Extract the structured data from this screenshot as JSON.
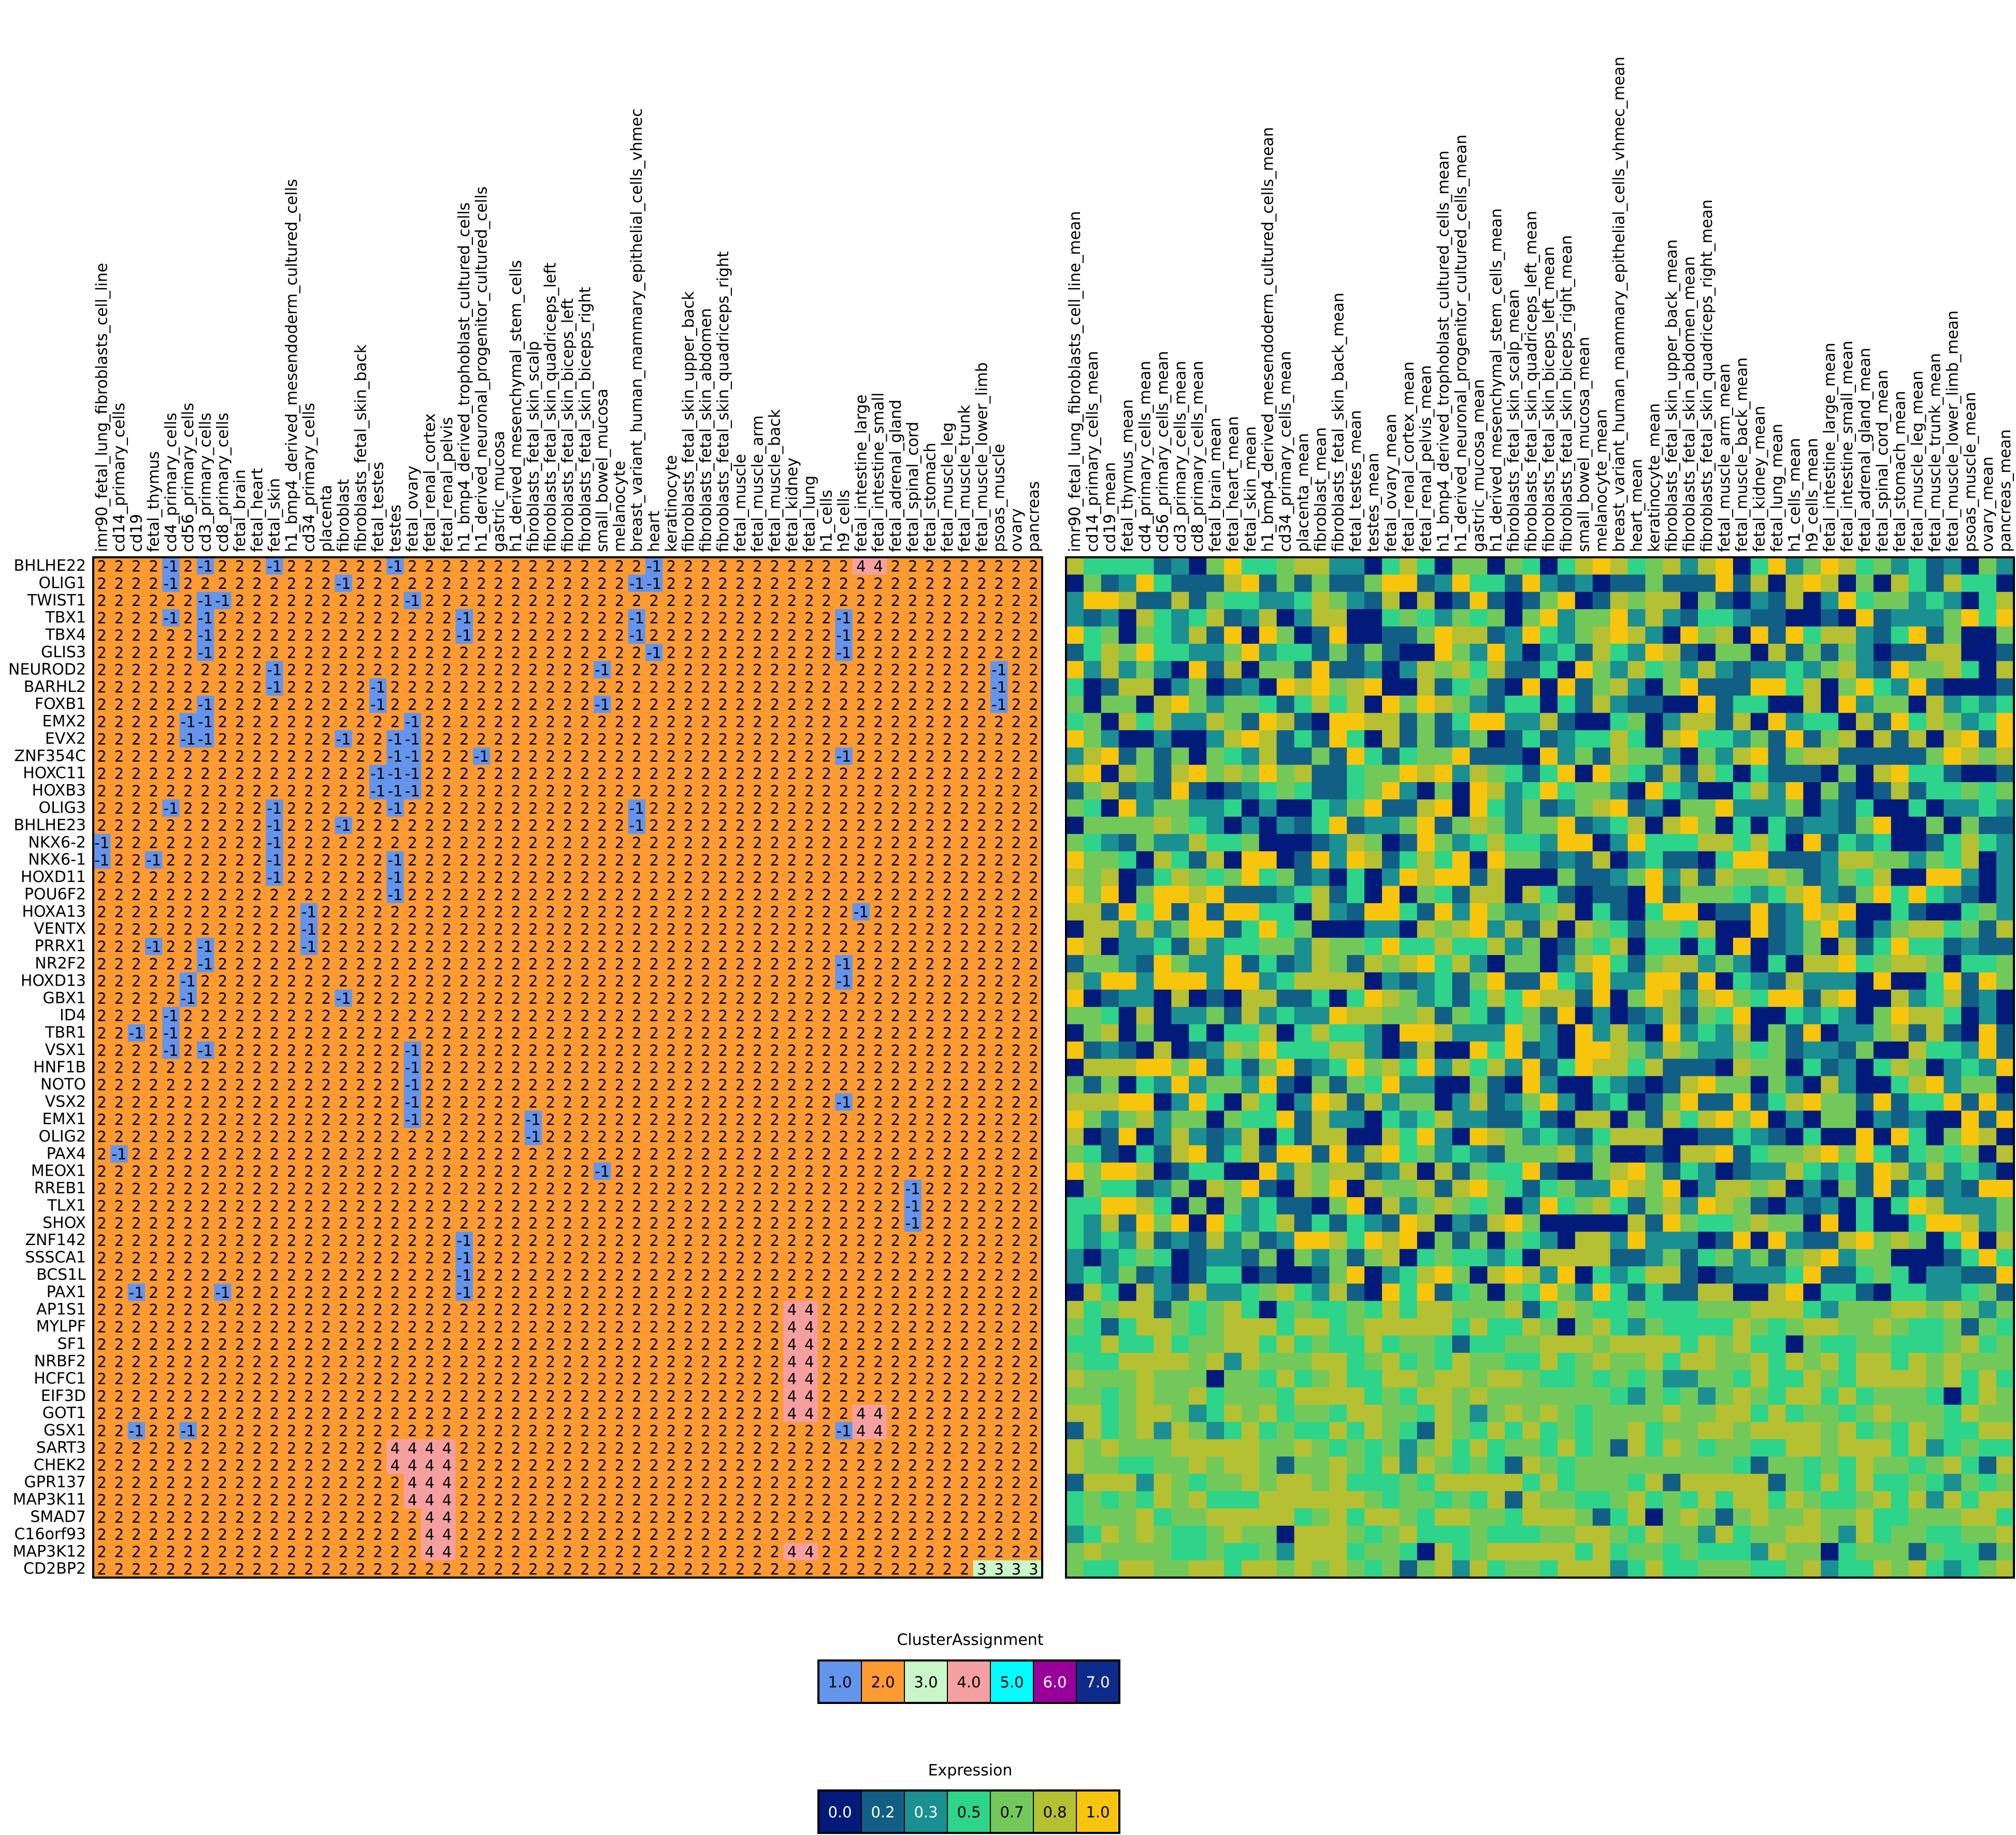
{
  "chart_data": [
    {
      "type": "heatmap",
      "name": "cluster-assignment-heatmap",
      "rows": [
        "BHLHE22",
        "OLIG1",
        "TWIST1",
        "TBX1",
        "TBX4",
        "GLIS3",
        "NEUROD2",
        "BARHL2",
        "FOXB1",
        "EMX2",
        "EVX2",
        "ZNF354C",
        "HOXC11",
        "HOXB3",
        "OLIG3",
        "BHLHE23",
        "NKX6-2",
        "NKX6-1",
        "HOXD11",
        "POU6F2",
        "HOXA13",
        "VENTX",
        "PRRX1",
        "NR2F2",
        "HOXD13",
        "GBX1",
        "ID4",
        "TBR1",
        "VSX1",
        "HNF1B",
        "NOTO",
        "VSX2",
        "EMX1",
        "OLIG2",
        "PAX4",
        "MEOX1",
        "RREB1",
        "TLX1",
        "SHOX",
        "ZNF142",
        "SSSCA1",
        "BCS1L",
        "PAX1",
        "AP1S1",
        "MYLPF",
        "SF1",
        "NRBF2",
        "HCFC1",
        "EIF3D",
        "GOT1",
        "GSX1",
        "SART3",
        "CHEK2",
        "GPR137",
        "MAP3K11",
        "SMAD7",
        "C16orf93",
        "MAP3K12",
        "CD2BP2"
      ],
      "columns": [
        "imr90_fetal_lung_fibroblasts_cell_line",
        "cd14_primary_cells",
        "cd19",
        "fetal_thymus",
        "cd4_primary_cells",
        "cd56_primary_cells",
        "cd3_primary_cells",
        "cd8_primary_cells",
        "fetal_brain",
        "fetal_heart",
        "fetal_skin",
        "h1_bmp4_derived_mesendoderm_cultured_cells",
        "cd34_primary_cells",
        "placenta",
        "fibroblast",
        "fibroblasts_fetal_skin_back",
        "fetal_testes",
        "testes",
        "fetal_ovary",
        "fetal_renal_cortex",
        "fetal_renal_pelvis",
        "h1_bmp4_derived_trophoblast_cultured_cells",
        "h1_derived_neuronal_progenitor_cultured_cells",
        "gastric_mucosa",
        "h1_derived_mesenchymal_stem_cells",
        "fibroblasts_fetal_skin_scalp",
        "fibroblasts_fetal_skin_quadriceps_left",
        "fibroblasts_fetal_skin_biceps_left",
        "fibroblasts_fetal_skin_biceps_right",
        "small_bowel_mucosa",
        "melanocyte",
        "breast_variant_human_mammary_epithelial_cells_vhmec",
        "heart",
        "keratinocyte",
        "fibroblasts_fetal_skin_upper_back",
        "fibroblasts_fetal_skin_abdomen",
        "fibroblasts_fetal_skin_quadriceps_right",
        "fetal_muscle",
        "fetal_muscle_arm",
        "fetal_muscle_back",
        "fetal_kidney",
        "fetal_lung",
        "h1_cells",
        "h9_cells",
        "fetal_intestine_large",
        "fetal_intestine_small",
        "fetal_adrenal_gland",
        "fetal_spinal_cord",
        "fetal_stomach",
        "fetal_muscle_leg",
        "fetal_muscle_trunk",
        "fetal_muscle_lower_limb",
        "psoas_muscle",
        "ovary",
        "pancreas"
      ],
      "default_value": 2,
      "exceptions": [
        [
          0,
          4,
          -1
        ],
        [
          0,
          6,
          -1
        ],
        [
          0,
          10,
          -1
        ],
        [
          0,
          17,
          -1
        ],
        [
          0,
          32,
          -1
        ],
        [
          0,
          44,
          4
        ],
        [
          0,
          45,
          4
        ],
        [
          1,
          4,
          -1
        ],
        [
          1,
          14,
          -1
        ],
        [
          1,
          31,
          -1
        ],
        [
          1,
          32,
          -1
        ],
        [
          2,
          6,
          -1
        ],
        [
          2,
          7,
          -1
        ],
        [
          2,
          18,
          -1
        ],
        [
          3,
          4,
          -1
        ],
        [
          3,
          6,
          -1
        ],
        [
          3,
          21,
          -1
        ],
        [
          3,
          31,
          -1
        ],
        [
          3,
          43,
          -1
        ],
        [
          4,
          6,
          -1
        ],
        [
          4,
          21,
          -1
        ],
        [
          4,
          31,
          -1
        ],
        [
          4,
          43,
          -1
        ],
        [
          5,
          6,
          -1
        ],
        [
          5,
          32,
          -1
        ],
        [
          5,
          43,
          -1
        ],
        [
          6,
          10,
          -1
        ],
        [
          6,
          29,
          -1
        ],
        [
          6,
          52,
          -1
        ],
        [
          7,
          10,
          -1
        ],
        [
          7,
          16,
          -1
        ],
        [
          7,
          52,
          -1
        ],
        [
          8,
          6,
          -1
        ],
        [
          8,
          16,
          -1
        ],
        [
          8,
          29,
          -1
        ],
        [
          8,
          52,
          -1
        ],
        [
          9,
          5,
          -1
        ],
        [
          9,
          6,
          -1
        ],
        [
          9,
          18,
          -1
        ],
        [
          10,
          5,
          -1
        ],
        [
          10,
          6,
          -1
        ],
        [
          10,
          14,
          -1
        ],
        [
          10,
          17,
          -1
        ],
        [
          10,
          18,
          -1
        ],
        [
          11,
          17,
          -1
        ],
        [
          11,
          18,
          -1
        ],
        [
          11,
          22,
          -1
        ],
        [
          11,
          43,
          -1
        ],
        [
          12,
          16,
          -1
        ],
        [
          12,
          17,
          -1
        ],
        [
          12,
          18,
          -1
        ],
        [
          13,
          16,
          -1
        ],
        [
          13,
          17,
          -1
        ],
        [
          13,
          18,
          -1
        ],
        [
          14,
          4,
          -1
        ],
        [
          14,
          10,
          -1
        ],
        [
          14,
          17,
          -1
        ],
        [
          14,
          31,
          -1
        ],
        [
          15,
          10,
          -1
        ],
        [
          15,
          14,
          -1
        ],
        [
          15,
          31,
          -1
        ],
        [
          16,
          0,
          -1
        ],
        [
          16,
          10,
          -1
        ],
        [
          17,
          0,
          -1
        ],
        [
          17,
          3,
          -1
        ],
        [
          17,
          10,
          -1
        ],
        [
          17,
          17,
          -1
        ],
        [
          18,
          10,
          -1
        ],
        [
          18,
          17,
          -1
        ],
        [
          19,
          17,
          -1
        ],
        [
          20,
          12,
          -1
        ],
        [
          20,
          44,
          -1
        ],
        [
          21,
          12,
          -1
        ],
        [
          22,
          3,
          -1
        ],
        [
          22,
          6,
          -1
        ],
        [
          22,
          12,
          -1
        ],
        [
          23,
          6,
          -1
        ],
        [
          23,
          43,
          -1
        ],
        [
          24,
          5,
          -1
        ],
        [
          24,
          43,
          -1
        ],
        [
          25,
          5,
          -1
        ],
        [
          25,
          14,
          -1
        ],
        [
          26,
          4,
          -1
        ],
        [
          27,
          2,
          -1
        ],
        [
          27,
          4,
          -1
        ],
        [
          28,
          4,
          -1
        ],
        [
          28,
          6,
          -1
        ],
        [
          28,
          18,
          -1
        ],
        [
          29,
          18,
          -1
        ],
        [
          30,
          18,
          -1
        ],
        [
          31,
          18,
          -1
        ],
        [
          31,
          43,
          -1
        ],
        [
          32,
          18,
          -1
        ],
        [
          32,
          25,
          -1
        ],
        [
          33,
          25,
          -1
        ],
        [
          34,
          1,
          -1
        ],
        [
          35,
          29,
          -1
        ],
        [
          36,
          47,
          -1
        ],
        [
          37,
          47,
          -1
        ],
        [
          38,
          47,
          -1
        ],
        [
          39,
          21,
          -1
        ],
        [
          40,
          21,
          -1
        ],
        [
          41,
          21,
          -1
        ],
        [
          42,
          2,
          -1
        ],
        [
          42,
          7,
          -1
        ],
        [
          42,
          21,
          -1
        ],
        [
          43,
          40,
          4
        ],
        [
          43,
          41,
          4
        ],
        [
          44,
          40,
          4
        ],
        [
          44,
          41,
          4
        ],
        [
          45,
          40,
          4
        ],
        [
          45,
          41,
          4
        ],
        [
          46,
          40,
          4
        ],
        [
          46,
          41,
          4
        ],
        [
          47,
          40,
          4
        ],
        [
          47,
          41,
          4
        ],
        [
          48,
          40,
          4
        ],
        [
          48,
          41,
          4
        ],
        [
          49,
          40,
          4
        ],
        [
          49,
          41,
          4
        ],
        [
          49,
          44,
          4
        ],
        [
          49,
          45,
          4
        ],
        [
          50,
          2,
          -1
        ],
        [
          50,
          5,
          -1
        ],
        [
          50,
          43,
          -1
        ],
        [
          50,
          44,
          4
        ],
        [
          50,
          45,
          4
        ],
        [
          51,
          17,
          4
        ],
        [
          51,
          18,
          4
        ],
        [
          51,
          19,
          4
        ],
        [
          51,
          20,
          4
        ],
        [
          52,
          17,
          4
        ],
        [
          52,
          18,
          4
        ],
        [
          52,
          19,
          4
        ],
        [
          52,
          20,
          4
        ],
        [
          53,
          18,
          4
        ],
        [
          53,
          19,
          4
        ],
        [
          53,
          20,
          4
        ],
        [
          54,
          18,
          4
        ],
        [
          54,
          19,
          4
        ],
        [
          54,
          20,
          4
        ],
        [
          55,
          19,
          4
        ],
        [
          55,
          20,
          4
        ],
        [
          56,
          19,
          4
        ],
        [
          56,
          20,
          4
        ],
        [
          57,
          19,
          4
        ],
        [
          57,
          20,
          4
        ],
        [
          57,
          40,
          4
        ],
        [
          57,
          41,
          4
        ],
        [
          58,
          51,
          3
        ],
        [
          58,
          52,
          3
        ],
        [
          58,
          53,
          3
        ],
        [
          58,
          54,
          3
        ]
      ]
    },
    {
      "type": "heatmap",
      "name": "expression-heatmap",
      "columns": [
        "imr90_fetal_lung_fibroblasts_cell_line_mean",
        "cd14_primary_cells_mean",
        "cd19_mean",
        "fetal_thymus_mean",
        "cd4_primary_cells_mean",
        "cd56_primary_cells_mean",
        "cd3_primary_cells_mean",
        "cd8_primary_cells_mean",
        "fetal_brain_mean",
        "fetal_heart_mean",
        "fetal_skin_mean",
        "h1_bmp4_derived_mesendoderm_cultured_cells_mean",
        "cd34_primary_cells_mean",
        "placenta_mean",
        "fibroblast_mean",
        "fibroblasts_fetal_skin_back_mean",
        "fetal_testes_mean",
        "testes_mean",
        "fetal_ovary_mean",
        "fetal_renal_cortex_mean",
        "fetal_renal_pelvis_mean",
        "h1_bmp4_derived_trophoblast_cultured_cells_mean",
        "h1_derived_neuronal_progenitor_cultured_cells_mean",
        "gastric_mucosa_mean",
        "h1_derived_mesenchymal_stem_cells_mean",
        "fibroblasts_fetal_skin_scalp_mean",
        "fibroblasts_fetal_skin_quadriceps_left_mean",
        "fibroblasts_fetal_skin_biceps_left_mean",
        "fibroblasts_fetal_skin_biceps_right_mean",
        "small_bowel_mucosa_mean",
        "melanocyte_mean",
        "breast_variant_human_mammary_epithelial_cells_vhmec_mean",
        "heart_mean",
        "keratinocyte_mean",
        "fibroblasts_fetal_skin_upper_back_mean",
        "fibroblasts_fetal_skin_abdomen_mean",
        "fibroblasts_fetal_skin_quadriceps_right_mean",
        "fetal_muscle_arm_mean",
        "fetal_muscle_back_mean",
        "fetal_kidney_mean",
        "fetal_lung_mean",
        "h1_cells_mean",
        "h9_cells_mean",
        "fetal_intestine_large_mean",
        "fetal_intestine_small_mean",
        "fetal_adrenal_gland_mean",
        "fetal_spinal_cord_mean",
        "fetal_stomach_mean",
        "fetal_muscle_leg_mean",
        "fetal_muscle_trunk_mean",
        "fetal_muscle_lower_limb_mean",
        "psoas_muscle_mean",
        "ovary_mean",
        "pancreas_mean"
      ],
      "value_range": [
        0.0,
        1.0
      ],
      "note_rows": "same genes as left heatmap"
    }
  ],
  "legends": {
    "cluster": {
      "title": "ClusterAssignment",
      "items": [
        {
          "label": "1.0",
          "color": "#6495ed",
          "text_color": "#000000"
        },
        {
          "label": "2.0",
          "color": "#fd9a32",
          "text_color": "#000000"
        },
        {
          "label": "3.0",
          "color": "#c9f7c9",
          "text_color": "#000000"
        },
        {
          "label": "4.0",
          "color": "#f5a0a0",
          "text_color": "#000000"
        },
        {
          "label": "5.0",
          "color": "#00ffff",
          "text_color": "#000000"
        },
        {
          "label": "6.0",
          "color": "#990099",
          "text_color": "#ffffff"
        },
        {
          "label": "7.0",
          "color": "#0d2b8a",
          "text_color": "#ffffff"
        }
      ]
    },
    "expression": {
      "title": "Expression",
      "items": [
        {
          "label": "0.0",
          "color": "#021a7a",
          "text_color": "#ffffff"
        },
        {
          "label": "0.2",
          "color": "#125f86",
          "text_color": "#ffffff"
        },
        {
          "label": "0.3",
          "color": "#1a9092",
          "text_color": "#ffffff"
        },
        {
          "label": "0.5",
          "color": "#2ed48a",
          "text_color": "#000000"
        },
        {
          "label": "0.7",
          "color": "#72c95a",
          "text_color": "#000000"
        },
        {
          "label": "0.8",
          "color": "#b5c032",
          "text_color": "#000000"
        },
        {
          "label": "1.0",
          "color": "#f7c50c",
          "text_color": "#000000"
        }
      ]
    }
  },
  "colors": {
    "minus1": "#6495ed",
    "two": "#fd9a32",
    "three": "#c9f7c9",
    "four": "#f5a0a0"
  }
}
